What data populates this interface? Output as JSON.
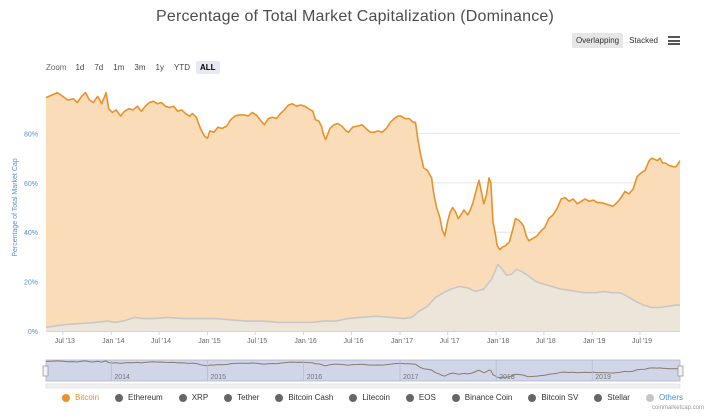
{
  "title": "Percentage of Total Market Capitalization (Dominance)",
  "zoom": {
    "label": "Zoom",
    "buttons": [
      "1d",
      "7d",
      "1m",
      "3m",
      "1y",
      "YTD",
      "ALL"
    ],
    "active": "ALL"
  },
  "mode": {
    "overlapping": "Overlapping",
    "stacked": "Stacked",
    "active": "Overlapping"
  },
  "credit": "coinmarketcap.com",
  "colors": {
    "bitcoin_line": "#e8922b",
    "bitcoin_fill": "#fbdcb8",
    "others_line": "#c7c7c7",
    "others_fill": "#ece6da",
    "navigator_fill": "#d0d5e8",
    "grid": "#e6e6e6"
  },
  "chart_data": {
    "type": "area",
    "ylabel": "Percentage of Total Market Cap",
    "ylim": [
      0,
      100
    ],
    "yticks": [
      "0%",
      "20%",
      "40%",
      "60%",
      "80%"
    ],
    "xlim": [
      "2013-04-28",
      "2019-11-30"
    ],
    "xticks": [
      "Jul '13",
      "Jan '14",
      "Jul '14",
      "Jan '15",
      "Jul '15",
      "Jan '16",
      "Jul '16",
      "Jan '17",
      "Jul '17",
      "Jan '18",
      "Jul '18",
      "Jan '19",
      "Jul '19"
    ],
    "navigator_labels": [
      "2014",
      "2015",
      "2016",
      "2017",
      "2018",
      "2019"
    ],
    "legend_position": "bottom",
    "series": [
      {
        "name": "Bitcoin",
        "color": "#e8922b",
        "points": [
          [
            "2013-04-28",
            94.5
          ],
          [
            "2013-05-20",
            95.5
          ],
          [
            "2013-06-10",
            96.5
          ],
          [
            "2013-07-01",
            95
          ],
          [
            "2013-07-20",
            93.5
          ],
          [
            "2013-08-10",
            94
          ],
          [
            "2013-08-25",
            92.5
          ],
          [
            "2013-09-10",
            95
          ],
          [
            "2013-09-25",
            96.5
          ],
          [
            "2013-10-10",
            93.5
          ],
          [
            "2013-10-25",
            92.5
          ],
          [
            "2013-11-10",
            95
          ],
          [
            "2013-11-25",
            92
          ],
          [
            "2013-12-05",
            94.5
          ],
          [
            "2013-12-12",
            96.5
          ],
          [
            "2013-12-22",
            90
          ],
          [
            "2014-01-05",
            88.5
          ],
          [
            "2014-01-20",
            89.5
          ],
          [
            "2014-02-05",
            87
          ],
          [
            "2014-02-20",
            89
          ],
          [
            "2014-03-10",
            90
          ],
          [
            "2014-03-25",
            89.5
          ],
          [
            "2014-04-10",
            91
          ],
          [
            "2014-04-25",
            89
          ],
          [
            "2014-05-10",
            91
          ],
          [
            "2014-05-25",
            92.5
          ],
          [
            "2014-06-10",
            93
          ],
          [
            "2014-06-25",
            92
          ],
          [
            "2014-07-10",
            92.5
          ],
          [
            "2014-07-25",
            91
          ],
          [
            "2014-08-10",
            90.5
          ],
          [
            "2014-08-25",
            91
          ],
          [
            "2014-09-10",
            89
          ],
          [
            "2014-09-25",
            89.5
          ],
          [
            "2014-10-10",
            88
          ],
          [
            "2014-10-25",
            87
          ],
          [
            "2014-11-05",
            88
          ],
          [
            "2014-11-20",
            86.5
          ],
          [
            "2014-12-05",
            82
          ],
          [
            "2014-12-20",
            79
          ],
          [
            "2015-01-01",
            78
          ],
          [
            "2015-01-10",
            81
          ],
          [
            "2015-01-25",
            80.5
          ],
          [
            "2015-02-10",
            82.5
          ],
          [
            "2015-02-25",
            82
          ],
          [
            "2015-03-15",
            83
          ],
          [
            "2015-03-30",
            85.5
          ],
          [
            "2015-04-15",
            87
          ],
          [
            "2015-05-01",
            87.5
          ],
          [
            "2015-05-20",
            87.5
          ],
          [
            "2015-06-05",
            87
          ],
          [
            "2015-06-20",
            88.5
          ],
          [
            "2015-07-05",
            87.5
          ],
          [
            "2015-07-20",
            85.5
          ],
          [
            "2015-08-05",
            83.5
          ],
          [
            "2015-08-20",
            86
          ],
          [
            "2015-09-05",
            86.5
          ],
          [
            "2015-09-20",
            86
          ],
          [
            "2015-10-05",
            88
          ],
          [
            "2015-10-20",
            89.5
          ],
          [
            "2015-11-05",
            91.5
          ],
          [
            "2015-11-20",
            92
          ],
          [
            "2015-12-05",
            91
          ],
          [
            "2015-12-20",
            91.5
          ],
          [
            "2016-01-05",
            91
          ],
          [
            "2016-01-20",
            90
          ],
          [
            "2016-02-05",
            89
          ],
          [
            "2016-02-15",
            85.5
          ],
          [
            "2016-02-28",
            85
          ],
          [
            "2016-03-10",
            82.5
          ],
          [
            "2016-03-15",
            80
          ],
          [
            "2016-03-25",
            77.5
          ],
          [
            "2016-04-10",
            82
          ],
          [
            "2016-04-25",
            83.5
          ],
          [
            "2016-05-10",
            84
          ],
          [
            "2016-05-25",
            83
          ],
          [
            "2016-06-10",
            81
          ],
          [
            "2016-06-20",
            80.5
          ],
          [
            "2016-07-05",
            82.5
          ],
          [
            "2016-07-25",
            83
          ],
          [
            "2016-08-10",
            83.5
          ],
          [
            "2016-08-25",
            82
          ],
          [
            "2016-09-10",
            80.5
          ],
          [
            "2016-09-25",
            80.5
          ],
          [
            "2016-10-10",
            81
          ],
          [
            "2016-10-25",
            80.5
          ],
          [
            "2016-11-10",
            82
          ],
          [
            "2016-11-25",
            84.5
          ],
          [
            "2016-12-10",
            86
          ],
          [
            "2016-12-25",
            87
          ],
          [
            "2017-01-05",
            87
          ],
          [
            "2017-01-20",
            86
          ],
          [
            "2017-02-05",
            86
          ],
          [
            "2017-02-20",
            84.5
          ],
          [
            "2017-03-01",
            84.5
          ],
          [
            "2017-03-10",
            77.5
          ],
          [
            "2017-03-20",
            71.5
          ],
          [
            "2017-04-01",
            66
          ],
          [
            "2017-04-15",
            65
          ],
          [
            "2017-05-01",
            62
          ],
          [
            "2017-05-10",
            55
          ],
          [
            "2017-05-20",
            50
          ],
          [
            "2017-06-01",
            46
          ],
          [
            "2017-06-10",
            41
          ],
          [
            "2017-06-20",
            38.5
          ],
          [
            "2017-07-01",
            44.5
          ],
          [
            "2017-07-10",
            48
          ],
          [
            "2017-07-20",
            50
          ],
          [
            "2017-08-01",
            48
          ],
          [
            "2017-08-10",
            45.5
          ],
          [
            "2017-08-20",
            47
          ],
          [
            "2017-09-01",
            49
          ],
          [
            "2017-09-15",
            47
          ],
          [
            "2017-09-25",
            49
          ],
          [
            "2017-10-05",
            52
          ],
          [
            "2017-10-20",
            58
          ],
          [
            "2017-10-28",
            61
          ],
          [
            "2017-11-05",
            57
          ],
          [
            "2017-11-10",
            54
          ],
          [
            "2017-11-15",
            51.5
          ],
          [
            "2017-11-25",
            55
          ],
          [
            "2017-12-05",
            62
          ],
          [
            "2017-12-12",
            60
          ],
          [
            "2017-12-20",
            44
          ],
          [
            "2017-12-28",
            40
          ],
          [
            "2018-01-05",
            34.5
          ],
          [
            "2018-01-15",
            33
          ],
          [
            "2018-01-25",
            34
          ],
          [
            "2018-02-05",
            34.5
          ],
          [
            "2018-02-20",
            36
          ],
          [
            "2018-03-05",
            41
          ],
          [
            "2018-03-15",
            45.5
          ],
          [
            "2018-03-25",
            45
          ],
          [
            "2018-04-05",
            44
          ],
          [
            "2018-04-15",
            42.5
          ],
          [
            "2018-04-25",
            38.5
          ],
          [
            "2018-05-05",
            36.5
          ],
          [
            "2018-05-20",
            37.5
          ],
          [
            "2018-06-05",
            38.5
          ],
          [
            "2018-06-20",
            40.5
          ],
          [
            "2018-07-05",
            42
          ],
          [
            "2018-07-20",
            45.5
          ],
          [
            "2018-08-05",
            47
          ],
          [
            "2018-08-20",
            49.5
          ],
          [
            "2018-09-05",
            53.5
          ],
          [
            "2018-09-20",
            54
          ],
          [
            "2018-10-05",
            52.5
          ],
          [
            "2018-10-20",
            53.5
          ],
          [
            "2018-11-05",
            51.5
          ],
          [
            "2018-11-20",
            52.5
          ],
          [
            "2018-12-05",
            53.5
          ],
          [
            "2018-12-20",
            52.5
          ],
          [
            "2019-01-05",
            53
          ],
          [
            "2019-01-20",
            52
          ],
          [
            "2019-02-05",
            52
          ],
          [
            "2019-02-20",
            51.5
          ],
          [
            "2019-03-05",
            51
          ],
          [
            "2019-03-20",
            50.5
          ],
          [
            "2019-04-05",
            52
          ],
          [
            "2019-04-20",
            54
          ],
          [
            "2019-05-05",
            56.5
          ],
          [
            "2019-05-20",
            55.5
          ],
          [
            "2019-06-05",
            57.5
          ],
          [
            "2019-06-20",
            62.5
          ],
          [
            "2019-07-05",
            64
          ],
          [
            "2019-07-20",
            65
          ],
          [
            "2019-08-05",
            69
          ],
          [
            "2019-08-15",
            70
          ],
          [
            "2019-08-25",
            69.5
          ],
          [
            "2019-09-05",
            69
          ],
          [
            "2019-09-15",
            70
          ],
          [
            "2019-09-25",
            68
          ],
          [
            "2019-10-05",
            68
          ],
          [
            "2019-10-20",
            67
          ],
          [
            "2019-11-05",
            66.5
          ],
          [
            "2019-11-15",
            66.5
          ],
          [
            "2019-11-25",
            68
          ],
          [
            "2019-11-30",
            69
          ]
        ]
      },
      {
        "name": "Others",
        "color": "#c7c7c7",
        "points": [
          [
            "2013-04-28",
            1.5
          ],
          [
            "2013-07-01",
            2.5
          ],
          [
            "2013-09-01",
            3
          ],
          [
            "2013-11-01",
            3.5
          ],
          [
            "2013-12-15",
            4
          ],
          [
            "2014-01-15",
            3.5
          ],
          [
            "2014-02-15",
            4
          ],
          [
            "2014-04-01",
            5.5
          ],
          [
            "2014-05-01",
            5
          ],
          [
            "2014-06-15",
            5
          ],
          [
            "2014-08-01",
            5.5
          ],
          [
            "2014-10-01",
            5
          ],
          [
            "2014-12-01",
            5
          ],
          [
            "2015-02-01",
            5
          ],
          [
            "2015-04-01",
            4.5
          ],
          [
            "2015-06-01",
            4
          ],
          [
            "2015-08-01",
            4
          ],
          [
            "2015-10-01",
            3.5
          ],
          [
            "2015-12-01",
            3.5
          ],
          [
            "2016-02-01",
            3.5
          ],
          [
            "2016-03-15",
            4
          ],
          [
            "2016-05-01",
            4
          ],
          [
            "2016-06-15",
            5
          ],
          [
            "2016-08-01",
            5.5
          ],
          [
            "2016-10-01",
            6
          ],
          [
            "2016-12-01",
            5.5
          ],
          [
            "2017-01-15",
            5
          ],
          [
            "2017-02-15",
            5.5
          ],
          [
            "2017-03-15",
            8
          ],
          [
            "2017-04-15",
            10
          ],
          [
            "2017-05-15",
            13.5
          ],
          [
            "2017-06-15",
            15.5
          ],
          [
            "2017-07-15",
            17
          ],
          [
            "2017-08-15",
            18
          ],
          [
            "2017-09-15",
            17.5
          ],
          [
            "2017-10-15",
            16
          ],
          [
            "2017-11-15",
            17
          ],
          [
            "2017-12-15",
            21
          ],
          [
            "2018-01-08",
            27
          ],
          [
            "2018-01-20",
            25.5
          ],
          [
            "2018-02-10",
            22.5
          ],
          [
            "2018-03-01",
            23
          ],
          [
            "2018-03-20",
            25
          ],
          [
            "2018-04-10",
            24
          ],
          [
            "2018-05-01",
            22.5
          ],
          [
            "2018-06-01",
            20
          ],
          [
            "2018-07-01",
            19
          ],
          [
            "2018-08-01",
            18
          ],
          [
            "2018-09-01",
            17
          ],
          [
            "2018-10-01",
            16.5
          ],
          [
            "2018-11-01",
            16
          ],
          [
            "2018-12-01",
            15.5
          ],
          [
            "2019-01-15",
            15.5
          ],
          [
            "2019-02-15",
            16
          ],
          [
            "2019-03-15",
            15.5
          ],
          [
            "2019-04-15",
            15.5
          ],
          [
            "2019-05-15",
            14
          ],
          [
            "2019-06-15",
            12
          ],
          [
            "2019-07-15",
            10.5
          ],
          [
            "2019-08-15",
            9.5
          ],
          [
            "2019-09-15",
            9.5
          ],
          [
            "2019-10-15",
            10
          ],
          [
            "2019-11-15",
            10.5
          ],
          [
            "2019-11-30",
            10.5
          ]
        ]
      }
    ]
  },
  "legend": [
    {
      "name": "Bitcoin",
      "color": "#e8922b",
      "text_color": "#e8922b"
    },
    {
      "name": "Ethereum",
      "color": "#666666",
      "text_color": "#333333"
    },
    {
      "name": "XRP",
      "color": "#666666",
      "text_color": "#333333"
    },
    {
      "name": "Tether",
      "color": "#666666",
      "text_color": "#333333"
    },
    {
      "name": "Bitcoin Cash",
      "color": "#666666",
      "text_color": "#333333"
    },
    {
      "name": "Litecoin",
      "color": "#666666",
      "text_color": "#333333"
    },
    {
      "name": "EOS",
      "color": "#666666",
      "text_color": "#333333"
    },
    {
      "name": "Binance Coin",
      "color": "#666666",
      "text_color": "#333333"
    },
    {
      "name": "Bitcoin SV",
      "color": "#666666",
      "text_color": "#333333"
    },
    {
      "name": "Stellar",
      "color": "#666666",
      "text_color": "#333333"
    },
    {
      "name": "Others",
      "color": "#c7c7c7",
      "text_color": "#4a8fd6"
    }
  ]
}
